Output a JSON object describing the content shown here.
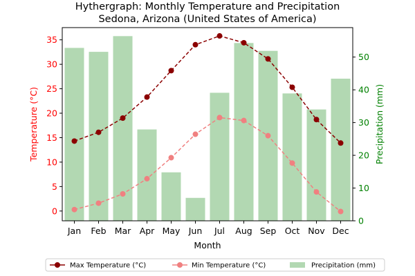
{
  "chart_data": {
    "type": "bar",
    "title_line1": "Hythergraph: Monthly Temperature and Precipitation",
    "title_line2": "Sedona, Arizona (United States of America)",
    "xlabel": "Month",
    "ylabel_left": "Temperature (°C)",
    "ylabel_right": "Precipitation (mm)",
    "categories": [
      "Jan",
      "Feb",
      "Mar",
      "Apr",
      "May",
      "Jun",
      "Jul",
      "Aug",
      "Sep",
      "Oct",
      "Nov",
      "Dec"
    ],
    "ylim_left": [
      -2,
      37.5
    ],
    "ylim_right": [
      0,
      59
    ],
    "yticks_left": [
      0,
      5,
      10,
      15,
      20,
      25,
      30,
      35
    ],
    "yticks_right": [
      0,
      10,
      20,
      30,
      40,
      50
    ],
    "grid": false,
    "legend_placement": "bottom-center",
    "series": [
      {
        "name": "Max Temperature (°C)",
        "kind": "line",
        "axis": "left",
        "color": "#8b0000",
        "values": [
          14.3,
          16.1,
          19.0,
          23.3,
          28.7,
          34.0,
          35.8,
          34.4,
          31.1,
          25.3,
          18.7,
          13.9
        ]
      },
      {
        "name": "Min Temperature (°C)",
        "kind": "line",
        "axis": "left",
        "color": "#f08080",
        "values": [
          0.3,
          1.6,
          3.5,
          6.6,
          10.9,
          15.7,
          19.1,
          18.5,
          15.4,
          9.8,
          3.9,
          -0.1
        ]
      },
      {
        "name": "Precipitation (mm)",
        "kind": "bar",
        "axis": "right",
        "color": "#b2d8b2",
        "values": [
          52.8,
          51.6,
          56.4,
          27.9,
          14.8,
          7.0,
          39.1,
          54.3,
          51.9,
          38.9,
          34.0,
          43.4
        ]
      }
    ]
  }
}
